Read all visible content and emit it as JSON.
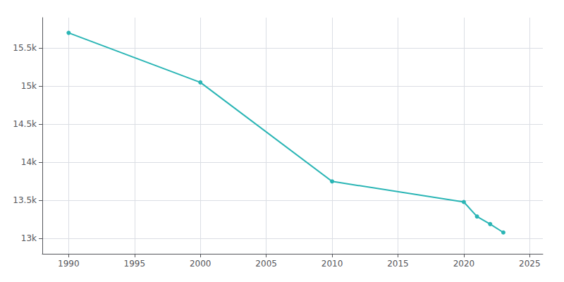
{
  "chart_data": {
    "type": "line",
    "x": [
      1990,
      2000,
      2010,
      2020,
      2021,
      2022,
      2023
    ],
    "values": [
      15700,
      15050,
      13750,
      13480,
      13290,
      13190,
      13080
    ],
    "color": "#2ab5b5",
    "marker": "circle",
    "xlim": [
      1988,
      2026
    ],
    "xticks": [
      1990,
      1995,
      2000,
      2005,
      2010,
      2015,
      2020,
      2025
    ],
    "ylim": [
      12800,
      15900
    ],
    "yticks": [
      {
        "value": 13000,
        "label": "13k"
      },
      {
        "value": 13500,
        "label": "13.5k"
      },
      {
        "value": 14000,
        "label": "14k"
      },
      {
        "value": 14500,
        "label": "14.5k"
      },
      {
        "value": 15000,
        "label": "15k"
      },
      {
        "value": 15500,
        "label": "15.5k"
      }
    ],
    "grid": true
  }
}
